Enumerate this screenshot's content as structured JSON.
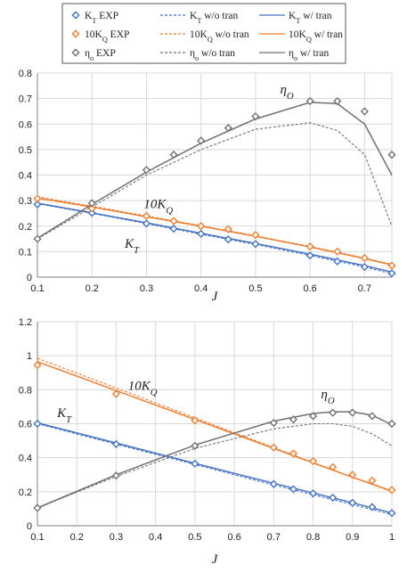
{
  "colors": {
    "kt": "#4472c4",
    "kq": "#ed7d31",
    "eta": "#707070"
  },
  "legend": [
    {
      "key": "kt_exp",
      "label": "KT EXP",
      "style": "marker",
      "color": "#4472c4"
    },
    {
      "key": "kt_wo",
      "label": "KT w/o tran",
      "style": "dashed",
      "color": "#4472c4"
    },
    {
      "key": "kt_w",
      "label": "KT w/ tran",
      "style": "solid",
      "color": "#4472c4"
    },
    {
      "key": "kq_exp",
      "label": "10KQ EXP",
      "style": "marker",
      "color": "#ed7d31"
    },
    {
      "key": "kq_wo",
      "label": "10KQ w/o tran",
      "style": "dashed",
      "color": "#ed7d31"
    },
    {
      "key": "kq_w",
      "label": "10KQ w/ tran",
      "style": "solid",
      "color": "#ed7d31"
    },
    {
      "key": "eta_exp",
      "label": "ηo EXP",
      "style": "marker",
      "color": "#707070"
    },
    {
      "key": "eta_wo",
      "label": "ηo w/o tran",
      "style": "dashed",
      "color": "#707070"
    },
    {
      "key": "eta_w",
      "label": "ηo w/ tran",
      "style": "solid",
      "color": "#707070"
    }
  ],
  "chart_data": [
    {
      "type": "line",
      "xlabel": "J",
      "xlim": [
        0.1,
        0.75
      ],
      "ylim": [
        0,
        0.8
      ],
      "xticks": [
        "0.1",
        "0.2",
        "0.3",
        "0.4",
        "0.5",
        "0.6",
        "0.7"
      ],
      "xtick_values": [
        0.1,
        0.2,
        0.3,
        0.4,
        0.5,
        0.6,
        0.7
      ],
      "yticks": [
        "0",
        "0.1",
        "0.2",
        "0.3",
        "0.4",
        "0.5",
        "0.6",
        "0.7",
        "0.8"
      ],
      "ytick_values": [
        0,
        0.1,
        0.2,
        0.3,
        0.4,
        0.5,
        0.6,
        0.7,
        0.8
      ],
      "grid": true,
      "annotations": [
        {
          "text": "KT",
          "x": 0.26,
          "y": 0.115,
          "color": "#222"
        },
        {
          "text": "10KQ",
          "x": 0.295,
          "y": 0.27,
          "color": "#222"
        },
        {
          "text": "ηO",
          "x": 0.545,
          "y": 0.72,
          "color": "#222"
        }
      ],
      "series": [
        {
          "name": "KT EXP",
          "color": "#4472c4",
          "kind": "marker",
          "x": [
            0.1,
            0.2,
            0.3,
            0.35,
            0.4,
            0.45,
            0.5,
            0.6,
            0.65,
            0.7,
            0.75
          ],
          "y": [
            0.285,
            0.252,
            0.21,
            0.19,
            0.17,
            0.148,
            0.13,
            0.085,
            0.062,
            0.04,
            0.015
          ]
        },
        {
          "name": "KT w/o tran",
          "color": "#4472c4",
          "kind": "dashed",
          "x": [
            0.1,
            0.2,
            0.3,
            0.4,
            0.5,
            0.6,
            0.7,
            0.75
          ],
          "y": [
            0.288,
            0.25,
            0.21,
            0.168,
            0.128,
            0.085,
            0.04,
            0.013
          ]
        },
        {
          "name": "KT w/ tran",
          "color": "#4472c4",
          "kind": "solid",
          "x": [
            0.1,
            0.2,
            0.3,
            0.4,
            0.5,
            0.6,
            0.7,
            0.75
          ],
          "y": [
            0.29,
            0.252,
            0.213,
            0.172,
            0.132,
            0.09,
            0.045,
            0.02
          ]
        },
        {
          "name": "10KQ EXP",
          "color": "#ed7d31",
          "kind": "marker",
          "x": [
            0.1,
            0.2,
            0.3,
            0.35,
            0.4,
            0.45,
            0.5,
            0.6,
            0.65,
            0.7,
            0.75
          ],
          "y": [
            0.308,
            0.27,
            0.24,
            0.22,
            0.2,
            0.188,
            0.165,
            0.12,
            0.1,
            0.075,
            0.045
          ]
        },
        {
          "name": "10KQ w/o tran",
          "color": "#ed7d31",
          "kind": "dashed",
          "x": [
            0.1,
            0.2,
            0.3,
            0.4,
            0.5,
            0.6,
            0.7,
            0.75
          ],
          "y": [
            0.315,
            0.278,
            0.24,
            0.202,
            0.162,
            0.12,
            0.075,
            0.05
          ]
        },
        {
          "name": "10KQ w/ tran",
          "color": "#ed7d31",
          "kind": "solid",
          "x": [
            0.1,
            0.2,
            0.3,
            0.4,
            0.5,
            0.6,
            0.7,
            0.75
          ],
          "y": [
            0.31,
            0.275,
            0.237,
            0.2,
            0.16,
            0.118,
            0.073,
            0.048
          ]
        },
        {
          "name": "ηo EXP",
          "color": "#707070",
          "kind": "marker",
          "x": [
            0.1,
            0.2,
            0.3,
            0.35,
            0.4,
            0.45,
            0.5,
            0.6,
            0.65,
            0.7,
            0.75
          ],
          "y": [
            0.15,
            0.29,
            0.42,
            0.48,
            0.535,
            0.585,
            0.63,
            0.69,
            0.69,
            0.65,
            0.48
          ]
        },
        {
          "name": "ηo w/o tran",
          "color": "#707070",
          "kind": "dashed",
          "x": [
            0.1,
            0.2,
            0.3,
            0.4,
            0.5,
            0.6,
            0.65,
            0.7,
            0.75
          ],
          "y": [
            0.15,
            0.275,
            0.4,
            0.5,
            0.58,
            0.605,
            0.575,
            0.48,
            0.2
          ]
        },
        {
          "name": "ηo w/ tran",
          "color": "#707070",
          "kind": "solid",
          "x": [
            0.1,
            0.2,
            0.3,
            0.4,
            0.5,
            0.6,
            0.65,
            0.7,
            0.75
          ],
          "y": [
            0.152,
            0.285,
            0.412,
            0.525,
            0.62,
            0.685,
            0.68,
            0.6,
            0.4
          ]
        }
      ]
    },
    {
      "type": "line",
      "xlabel": "J",
      "xlim": [
        0.1,
        1.0
      ],
      "ylim": [
        0,
        1.2
      ],
      "xticks": [
        "0.1",
        "0.2",
        "0.3",
        "0.4",
        "0.5",
        "0.6",
        "0.7",
        "0.8",
        "0.9",
        "1"
      ],
      "xtick_values": [
        0.1,
        0.2,
        0.3,
        0.4,
        0.5,
        0.6,
        0.7,
        0.8,
        0.9,
        1.0
      ],
      "yticks": [
        "0",
        "0.2",
        "0.4",
        "0.6",
        "0.8",
        "1",
        "1.2"
      ],
      "ytick_values": [
        0,
        0.2,
        0.4,
        0.6,
        0.8,
        1.0,
        1.2
      ],
      "grid": true,
      "annotations": [
        {
          "text": "KT",
          "x": 0.15,
          "y": 0.64,
          "color": "#222"
        },
        {
          "text": "10KQ",
          "x": 0.33,
          "y": 0.8,
          "color": "#222"
        },
        {
          "text": "ηO",
          "x": 0.82,
          "y": 0.75,
          "color": "#222"
        }
      ],
      "series": [
        {
          "name": "KT EXP",
          "color": "#4472c4",
          "kind": "marker",
          "x": [
            0.1,
            0.3,
            0.5,
            0.7,
            0.75,
            0.8,
            0.85,
            0.9,
            0.95,
            1.0
          ],
          "y": [
            0.6,
            0.48,
            0.365,
            0.245,
            0.215,
            0.19,
            0.165,
            0.135,
            0.11,
            0.075
          ]
        },
        {
          "name": "KT w/o tran",
          "color": "#4472c4",
          "kind": "dashed",
          "x": [
            0.1,
            0.3,
            0.5,
            0.7,
            0.9,
            1.0
          ],
          "y": [
            0.6,
            0.48,
            0.36,
            0.24,
            0.125,
            0.065
          ]
        },
        {
          "name": "KT w/ tran",
          "color": "#4472c4",
          "kind": "solid",
          "x": [
            0.1,
            0.3,
            0.5,
            0.7,
            0.9,
            1.0
          ],
          "y": [
            0.605,
            0.487,
            0.367,
            0.25,
            0.135,
            0.075
          ]
        },
        {
          "name": "10KQ EXP",
          "color": "#ed7d31",
          "kind": "marker",
          "x": [
            0.1,
            0.3,
            0.5,
            0.7,
            0.75,
            0.8,
            0.85,
            0.9,
            0.95,
            1.0
          ],
          "y": [
            0.945,
            0.775,
            0.62,
            0.46,
            0.425,
            0.38,
            0.345,
            0.3,
            0.265,
            0.21
          ]
        },
        {
          "name": "10KQ w/o tran",
          "color": "#ed7d31",
          "kind": "dashed",
          "x": [
            0.1,
            0.3,
            0.5,
            0.7,
            0.9,
            1.0
          ],
          "y": [
            0.985,
            0.81,
            0.635,
            0.46,
            0.285,
            0.2
          ]
        },
        {
          "name": "10KQ w/ tran",
          "color": "#ed7d31",
          "kind": "solid",
          "x": [
            0.1,
            0.3,
            0.5,
            0.7,
            0.9,
            1.0
          ],
          "y": [
            0.965,
            0.795,
            0.625,
            0.455,
            0.285,
            0.205
          ]
        },
        {
          "name": "ηo EXP",
          "color": "#707070",
          "kind": "marker",
          "x": [
            0.1,
            0.3,
            0.5,
            0.7,
            0.75,
            0.8,
            0.85,
            0.9,
            0.95,
            1.0
          ],
          "y": [
            0.105,
            0.295,
            0.47,
            0.605,
            0.625,
            0.645,
            0.665,
            0.665,
            0.645,
            0.6
          ]
        },
        {
          "name": "ηo w/o tran",
          "color": "#707070",
          "kind": "dashed",
          "x": [
            0.1,
            0.3,
            0.5,
            0.7,
            0.8,
            0.85,
            0.9,
            0.95,
            1.0
          ],
          "y": [
            0.105,
            0.29,
            0.455,
            0.57,
            0.6,
            0.6,
            0.585,
            0.54,
            0.47
          ]
        },
        {
          "name": "ηo w/ tran",
          "color": "#707070",
          "kind": "solid",
          "x": [
            0.1,
            0.3,
            0.5,
            0.7,
            0.8,
            0.85,
            0.9,
            0.95,
            1.0
          ],
          "y": [
            0.105,
            0.3,
            0.475,
            0.615,
            0.66,
            0.67,
            0.67,
            0.65,
            0.595
          ]
        }
      ]
    }
  ]
}
